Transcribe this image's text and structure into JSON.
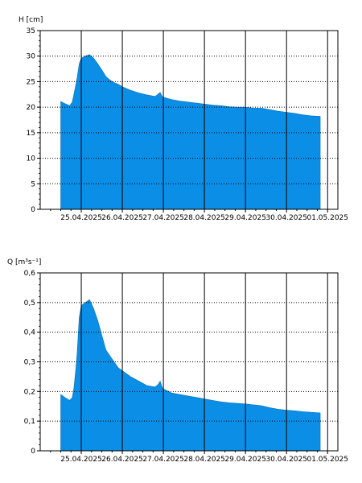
{
  "colors": {
    "fill": "#0a8ee6",
    "grid": "#000000",
    "axis": "#000000"
  },
  "chart_data": [
    {
      "type": "area",
      "ylabel": "H [cm]",
      "ylim": [
        0,
        35
      ],
      "yticks": [
        0,
        5,
        10,
        15,
        20,
        25,
        30,
        35
      ],
      "ytick_labels": [
        "0",
        "5",
        "10",
        "15",
        "20",
        "25",
        "30",
        "35"
      ],
      "xlim": [
        0,
        7.25
      ],
      "xticks": [
        1,
        2,
        3,
        4,
        5,
        6,
        7
      ],
      "xtick_labels": [
        "25.04.2025",
        "26.04.2025",
        "27.04.2025",
        "28.04.2025",
        "29.04.2025",
        "30.04.2025",
        "01.05.2025"
      ],
      "grid": true,
      "x": [
        0.5,
        0.6,
        0.72,
        0.78,
        0.82,
        0.87,
        0.9,
        0.95,
        1.0,
        1.1,
        1.2,
        1.3,
        1.4,
        1.5,
        1.6,
        1.7,
        1.8,
        1.9,
        2.0,
        2.2,
        2.4,
        2.6,
        2.8,
        2.88,
        2.92,
        2.98,
        3.2,
        3.4,
        3.6,
        3.8,
        4.0,
        4.2,
        4.4,
        4.6,
        4.8,
        5.0,
        5.2,
        5.4,
        5.6,
        5.8,
        6.0,
        6.2,
        6.4,
        6.6,
        6.82
      ],
      "values": [
        21.1,
        20.7,
        20.3,
        21.0,
        22.5,
        24.5,
        25.8,
        28.5,
        29.6,
        30.0,
        30.3,
        29.6,
        28.5,
        27.3,
        26.0,
        25.3,
        24.8,
        24.5,
        24.0,
        23.3,
        22.8,
        22.4,
        22.1,
        22.6,
        22.9,
        22.0,
        21.5,
        21.2,
        21.0,
        20.8,
        20.6,
        20.4,
        20.3,
        20.1,
        20.0,
        20.0,
        19.8,
        19.8,
        19.5,
        19.2,
        19.0,
        18.8,
        18.5,
        18.3,
        18.2
      ]
    },
    {
      "type": "area",
      "ylabel": "Q [m³s⁻¹]",
      "ylim": [
        0,
        0.6
      ],
      "yticks": [
        0,
        0.1,
        0.2,
        0.3,
        0.4,
        0.5,
        0.6
      ],
      "ytick_labels": [
        "0",
        "0,1",
        "0,2",
        "0,3",
        "0,4",
        "0,5",
        "0,6"
      ],
      "xlim": [
        0,
        7.25
      ],
      "xticks": [
        1,
        2,
        3,
        4,
        5,
        6,
        7
      ],
      "xtick_labels": [
        "25.04.2025",
        "26.04.2025",
        "27.04.2025",
        "28.04.2025",
        "29.04.2025",
        "30.04.2025",
        "01.05.2025"
      ],
      "grid": true,
      "x": [
        0.5,
        0.6,
        0.72,
        0.78,
        0.82,
        0.87,
        0.9,
        0.95,
        1.0,
        1.1,
        1.2,
        1.3,
        1.4,
        1.5,
        1.6,
        1.7,
        1.8,
        1.9,
        2.0,
        2.2,
        2.4,
        2.6,
        2.8,
        2.88,
        2.92,
        2.98,
        3.2,
        3.4,
        3.6,
        3.8,
        4.0,
        4.2,
        4.4,
        4.6,
        4.8,
        5.0,
        5.2,
        5.4,
        5.6,
        5.8,
        6.0,
        6.2,
        6.4,
        6.6,
        6.82
      ],
      "values": [
        0.19,
        0.18,
        0.17,
        0.18,
        0.21,
        0.28,
        0.33,
        0.45,
        0.49,
        0.5,
        0.51,
        0.48,
        0.44,
        0.39,
        0.34,
        0.32,
        0.3,
        0.28,
        0.27,
        0.25,
        0.235,
        0.22,
        0.215,
        0.225,
        0.235,
        0.21,
        0.195,
        0.19,
        0.185,
        0.18,
        0.175,
        0.17,
        0.165,
        0.162,
        0.16,
        0.158,
        0.155,
        0.152,
        0.145,
        0.14,
        0.137,
        0.135,
        0.132,
        0.13,
        0.128
      ]
    }
  ]
}
